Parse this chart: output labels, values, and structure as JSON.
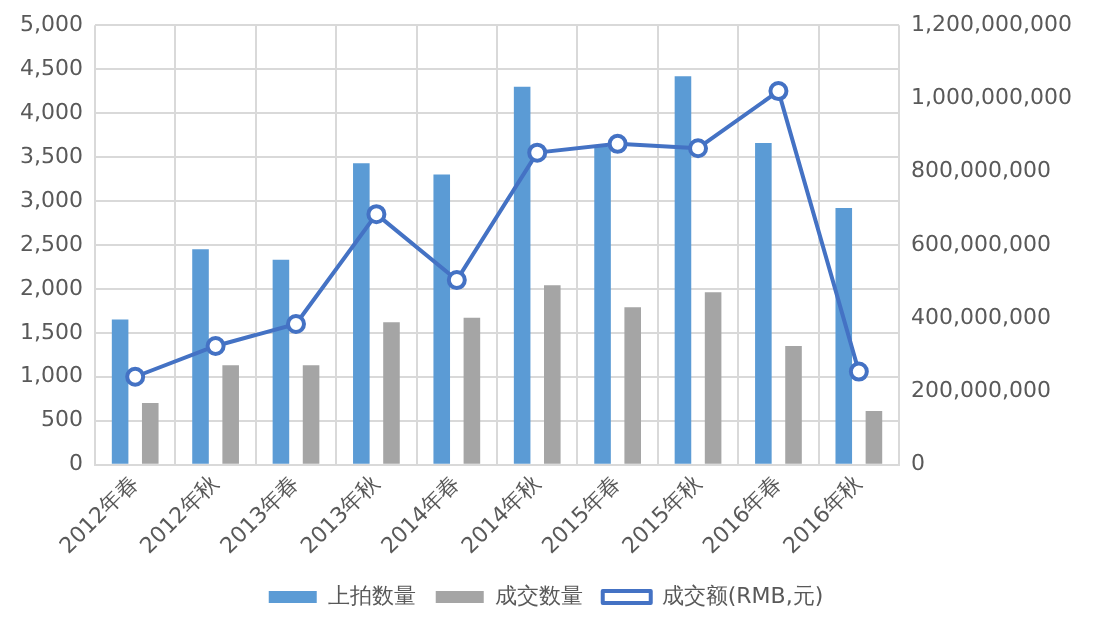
{
  "chart_data": {
    "type": "bar",
    "categories": [
      "2012年春",
      "2012年秋",
      "2013年春",
      "2013年秋",
      "2014年春",
      "2014年秋",
      "2015年春",
      "2015年秋",
      "2016年春",
      "2016年秋"
    ],
    "series": [
      {
        "name": "上拍数量",
        "color": "#5b9bd5",
        "values": [
          1650,
          2450,
          2330,
          3430,
          3300,
          4300,
          3620,
          4420,
          3660,
          2920
        ]
      },
      {
        "name": "成交数量",
        "color": "#a5a5a5",
        "values": [
          700,
          1130,
          1130,
          1620,
          1670,
          2040,
          1790,
          1960,
          1350,
          610
        ]
      },
      {
        "name": "成交额(RMB,元)",
        "type": "line",
        "axis": "y2",
        "color": "#4472c4",
        "marker": "circle",
        "values": [
          240000000,
          324000000,
          384000000,
          684000000,
          504000000,
          852000000,
          876000000,
          864000000,
          1020000000,
          254000000
        ]
      }
    ],
    "ylim": [
      0,
      5000
    ],
    "yticks": [
      0,
      500,
      {
        "value": 1000,
        "label": "1,000"
      },
      {
        "value": 1500,
        "label": "1,500"
      },
      {
        "value": 2000,
        "label": "2,000"
      },
      {
        "value": 2500,
        "label": "2,500"
      },
      {
        "value": 3000,
        "label": "3,000"
      },
      {
        "value": 3500,
        "label": "3,500"
      },
      {
        "value": 4000,
        "label": "4,000"
      },
      {
        "value": 4500,
        "label": "4,500"
      },
      {
        "value": 5000,
        "label": "5,000"
      }
    ],
    "y2lim": [
      0,
      1200000000
    ],
    "y2ticks": [
      0,
      {
        "value": 200000000,
        "label": "200,000,000"
      },
      {
        "value": 400000000,
        "label": "400,000,000"
      },
      {
        "value": 600000000,
        "label": "600,000,000"
      },
      {
        "value": 800000000,
        "label": "800,000,000"
      },
      {
        "value": 1000000000,
        "label": "1,000,000,000"
      },
      {
        "value": 1200000000,
        "label": "1,200,000,000"
      }
    ],
    "grid": true,
    "legend": "bottom"
  }
}
